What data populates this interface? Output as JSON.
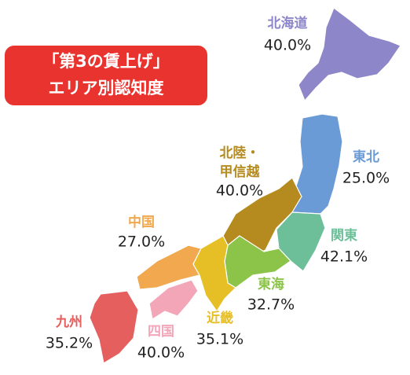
{
  "header": {
    "title_lines": [
      "「第3の賃上げ」",
      "エリア別認知度"
    ]
  },
  "regions": [
    {
      "name_lines": [
        "北海道"
      ],
      "value": "40.0%",
      "color": "#8d86c8"
    },
    {
      "name_lines": [
        "東北"
      ],
      "value": "25.0%",
      "color": "#6a9bd6"
    },
    {
      "name_lines": [
        "北陸・",
        "甲信越"
      ],
      "value": "40.0%",
      "color": "#b58b1f"
    },
    {
      "name_lines": [
        "関東"
      ],
      "value": "42.1%",
      "color": "#6cbf99"
    },
    {
      "name_lines": [
        "中国"
      ],
      "value": "27.0%",
      "color": "#f1a84e"
    },
    {
      "name_lines": [
        "東海"
      ],
      "value": "32.7%",
      "color": "#8cc449"
    },
    {
      "name_lines": [
        "近畿"
      ],
      "value": "35.1%",
      "color": "#e6bf27"
    },
    {
      "name_lines": [
        "九州"
      ],
      "value": "35.2%",
      "color": "#e45f5e"
    },
    {
      "name_lines": [
        "四国"
      ],
      "value": "40.0%",
      "color": "#f2a6b8"
    }
  ]
}
